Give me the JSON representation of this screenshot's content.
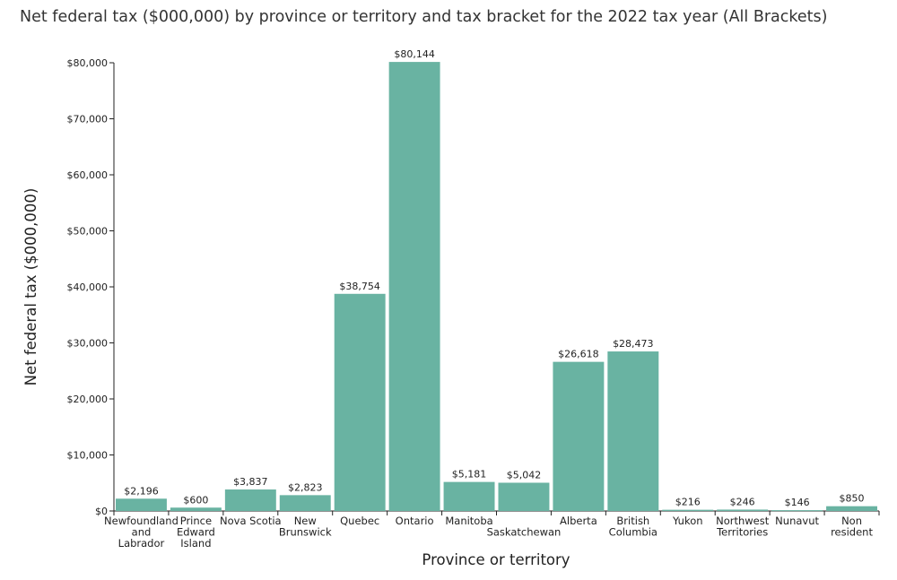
{
  "chart_data": {
    "type": "bar",
    "title": "Net federal tax ($000,000) by province or territory and tax bracket for the 2022 tax year (All Brackets)",
    "xlabel": "Province or territory",
    "ylabel": "Net federal tax ($000,000)",
    "categories": [
      "Newfoundland and Labrador",
      "Prince Edward Island",
      "Nova Scotia",
      "New Brunswick",
      "Quebec",
      "Ontario",
      "Manitoba",
      "Saskatchewan",
      "Alberta",
      "British Columbia",
      "Yukon",
      "Northwest Territories",
      "Nunavut",
      "Non resident"
    ],
    "category_label_lines": [
      [
        "Newfoundland",
        "and",
        "Labrador"
      ],
      [
        "Prince",
        "Edward",
        "Island"
      ],
      [
        "Nova Scotia"
      ],
      [
        "New",
        "Brunswick"
      ],
      [
        "Quebec"
      ],
      [
        "Ontario"
      ],
      [
        "Manitoba"
      ],
      [
        "",
        "Saskatchewan"
      ],
      [
        "Alberta"
      ],
      [
        "British",
        "Columbia"
      ],
      [
        "Yukon"
      ],
      [
        "Northwest",
        "Territories"
      ],
      [
        "Nunavut"
      ],
      [
        "Non",
        "resident"
      ]
    ],
    "values": [
      2196,
      600,
      3837,
      2823,
      38754,
      80144,
      5181,
      5042,
      26618,
      28473,
      216,
      246,
      146,
      850
    ],
    "value_labels": [
      "$2,196",
      "$600",
      "$3,837",
      "$2,823",
      "$38,754",
      "$80,144",
      "$5,181",
      "$5,042",
      "$26,618",
      "$28,473",
      "$216",
      "$246",
      "$146",
      "$850"
    ],
    "ylim": [
      0,
      80000
    ],
    "yticks": [
      0,
      10000,
      20000,
      30000,
      40000,
      50000,
      60000,
      70000,
      80000
    ],
    "ytick_labels": [
      "$0",
      "$10,000",
      "$20,000",
      "$30,000",
      "$40,000",
      "$50,000",
      "$60,000",
      "$70,000",
      "$80,000"
    ],
    "grid": false,
    "bar_color": "#69b3a2"
  }
}
